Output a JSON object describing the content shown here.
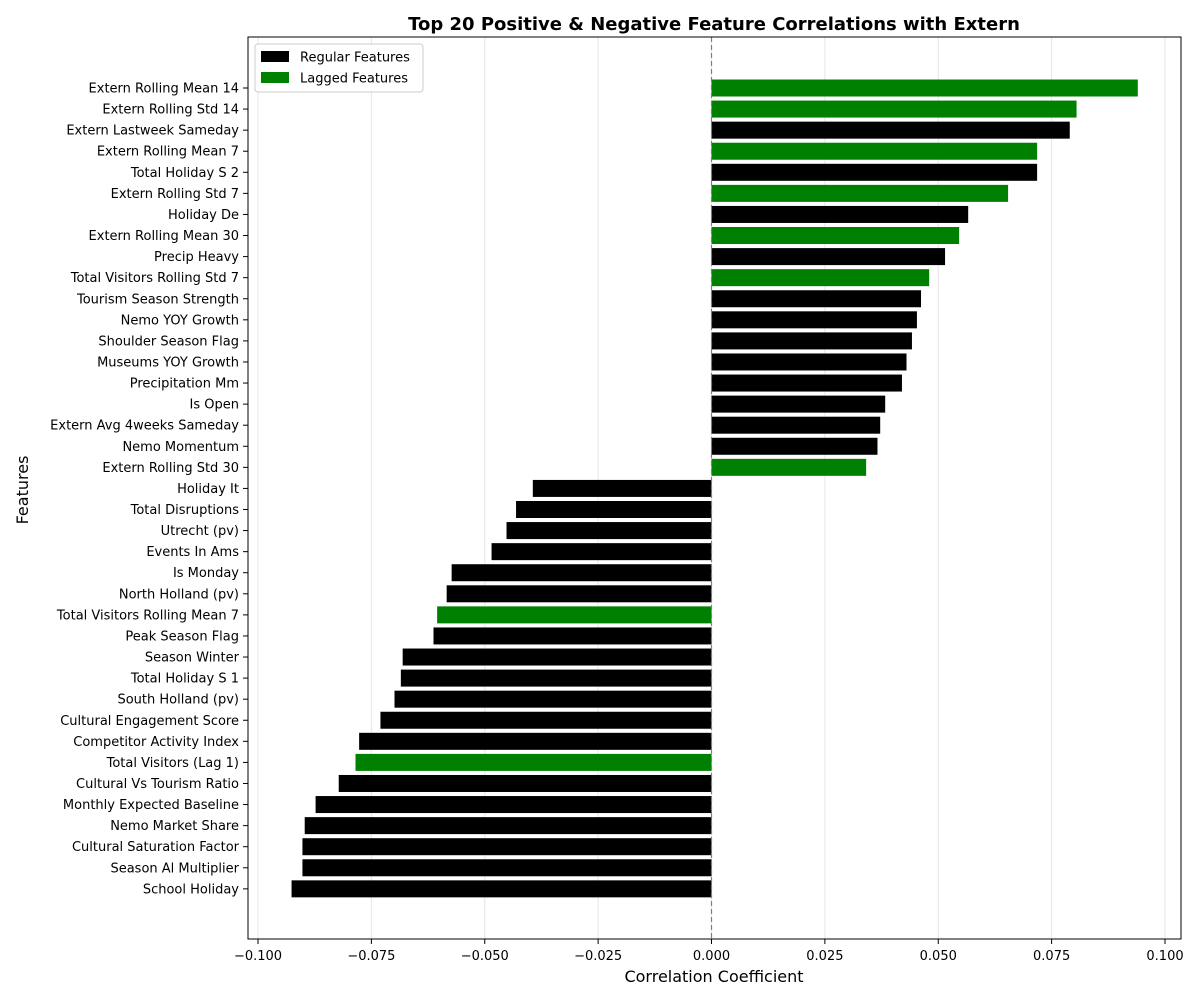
{
  "chart_data": {
    "type": "bar",
    "orientation": "horizontal",
    "title": "Top 20 Positive & Negative Feature Correlations with Extern",
    "xlabel": "Correlation Coefficient",
    "ylabel": "Features",
    "xlim": [
      -0.1,
      0.1
    ],
    "xticks": [
      -0.1,
      -0.075,
      -0.05,
      -0.025,
      0.0,
      0.025,
      0.05,
      0.075,
      0.1
    ],
    "xtick_labels": [
      "−0.100",
      "−0.075",
      "−0.050",
      "−0.025",
      "0.000",
      "0.025",
      "0.050",
      "0.075",
      "0.100"
    ],
    "grid": "x",
    "legend_position": "top-left",
    "colors": {
      "Regular Features": "#000000",
      "Lagged Features": "#008000"
    },
    "legend": [
      {
        "label": "Regular Features",
        "color": "#000000"
      },
      {
        "label": "Lagged Features",
        "color": "#008000"
      }
    ],
    "bars": [
      {
        "feature": "Extern Rolling Mean 14",
        "value": 0.094,
        "group": "Lagged Features"
      },
      {
        "feature": "Extern Rolling Std 14",
        "value": 0.0805,
        "group": "Lagged Features"
      },
      {
        "feature": "Extern Lastweek Sameday",
        "value": 0.079,
        "group": "Regular Features"
      },
      {
        "feature": "Extern Rolling Mean 7",
        "value": 0.0718,
        "group": "Lagged Features"
      },
      {
        "feature": "Total Holiday S 2",
        "value": 0.0718,
        "group": "Regular Features"
      },
      {
        "feature": "Extern Rolling Std 7",
        "value": 0.0654,
        "group": "Lagged Features"
      },
      {
        "feature": "Holiday De",
        "value": 0.0566,
        "group": "Regular Features"
      },
      {
        "feature": "Extern Rolling Mean 30",
        "value": 0.0546,
        "group": "Lagged Features"
      },
      {
        "feature": "Precip Heavy",
        "value": 0.0515,
        "group": "Regular Features"
      },
      {
        "feature": "Total Visitors Rolling Std 7",
        "value": 0.048,
        "group": "Lagged Features"
      },
      {
        "feature": "Tourism Season Strength",
        "value": 0.0462,
        "group": "Regular Features"
      },
      {
        "feature": "Nemo YOY Growth",
        "value": 0.0453,
        "group": "Regular Features"
      },
      {
        "feature": "Shoulder Season Flag",
        "value": 0.0442,
        "group": "Regular Features"
      },
      {
        "feature": "Museums YOY Growth",
        "value": 0.043,
        "group": "Regular Features"
      },
      {
        "feature": "Precipitation Mm",
        "value": 0.042,
        "group": "Regular Features"
      },
      {
        "feature": "Is Open",
        "value": 0.0383,
        "group": "Regular Features"
      },
      {
        "feature": "Extern Avg 4weeks Sameday",
        "value": 0.0372,
        "group": "Regular Features"
      },
      {
        "feature": "Nemo Momentum",
        "value": 0.0366,
        "group": "Regular Features"
      },
      {
        "feature": "Extern Rolling Std 30",
        "value": 0.0341,
        "group": "Lagged Features"
      },
      {
        "feature": "Holiday It",
        "value": -0.0394,
        "group": "Regular Features"
      },
      {
        "feature": "Total Disruptions",
        "value": -0.0431,
        "group": "Regular Features"
      },
      {
        "feature": "Utrecht (pv)",
        "value": -0.0452,
        "group": "Regular Features"
      },
      {
        "feature": "Events In Ams",
        "value": -0.0485,
        "group": "Regular Features"
      },
      {
        "feature": "Is Monday",
        "value": -0.0573,
        "group": "Regular Features"
      },
      {
        "feature": "North Holland (pv)",
        "value": -0.0584,
        "group": "Regular Features"
      },
      {
        "feature": "Total Visitors Rolling Mean 7",
        "value": -0.0605,
        "group": "Lagged Features"
      },
      {
        "feature": "Peak Season Flag",
        "value": -0.0613,
        "group": "Regular Features"
      },
      {
        "feature": "Season Winter",
        "value": -0.0681,
        "group": "Regular Features"
      },
      {
        "feature": "Total Holiday S 1",
        "value": -0.0685,
        "group": "Regular Features"
      },
      {
        "feature": "South Holland (pv)",
        "value": -0.0699,
        "group": "Regular Features"
      },
      {
        "feature": "Cultural Engagement Score",
        "value": -0.073,
        "group": "Regular Features"
      },
      {
        "feature": "Competitor Activity Index",
        "value": -0.0777,
        "group": "Regular Features"
      },
      {
        "feature": "Total Visitors (Lag 1)",
        "value": -0.0785,
        "group": "Lagged Features"
      },
      {
        "feature": "Cultural Vs Tourism Ratio",
        "value": -0.0822,
        "group": "Regular Features"
      },
      {
        "feature": "Monthly Expected Baseline",
        "value": -0.0873,
        "group": "Regular Features"
      },
      {
        "feature": "Nemo Market Share",
        "value": -0.0897,
        "group": "Regular Features"
      },
      {
        "feature": "Cultural Saturation Factor",
        "value": -0.0902,
        "group": "Regular Features"
      },
      {
        "feature": "Season Al Multiplier",
        "value": -0.0902,
        "group": "Regular Features"
      },
      {
        "feature": "School Holiday",
        "value": -0.0926,
        "group": "Regular Features"
      }
    ]
  }
}
